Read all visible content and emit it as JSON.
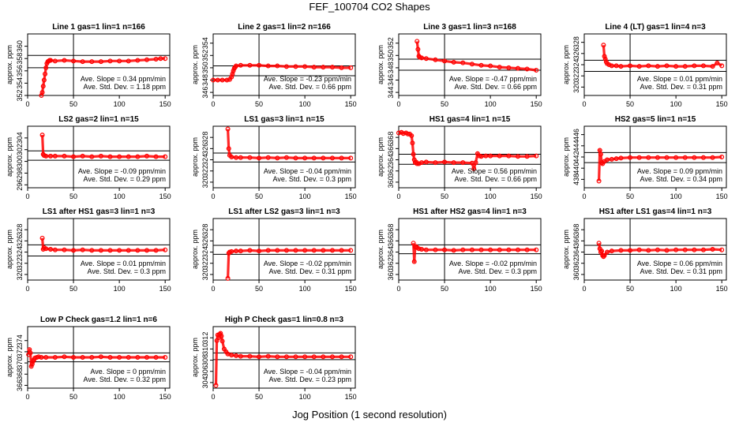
{
  "title": "FEF_100704  CO2 Shapes",
  "xlabel": "Jog Position (1 second resolution)",
  "colors": {
    "points": "#ff0000",
    "axes": "#000000"
  },
  "chart_data": [
    {
      "type": "scatter",
      "title": "Line 1 gas=1 lin=1 n=166",
      "ylabel": "approx. ppm",
      "xlim": [
        0,
        155
      ],
      "ylim": [
        352,
        362
      ],
      "xticks": [
        0,
        50,
        100,
        150
      ],
      "yticks": [
        352,
        354,
        356,
        358,
        360
      ],
      "hlines": [
        358.5,
        356.5
      ],
      "annotations": [
        "Ave. Slope = 0.34 ppm/min",
        "Ave. Std. Dev. = 1.18 ppm"
      ],
      "series": [
        {
          "x": [
            15,
            16,
            17,
            18,
            19,
            20,
            21,
            22,
            23,
            24,
            25,
            30,
            40,
            50,
            60,
            70,
            80,
            90,
            100,
            110,
            120,
            130,
            140,
            145,
            150
          ],
          "y": [
            352,
            352.5,
            353.5,
            354.5,
            355.5,
            356.5,
            357.2,
            357.5,
            357.6,
            357.7,
            357.7,
            357.6,
            357.7,
            357.6,
            357.5,
            357.5,
            357.5,
            357.6,
            357.6,
            357.6,
            357.7,
            357.8,
            357.9,
            358,
            358
          ]
        }
      ]
    },
    {
      "type": "scatter",
      "title": "Line 2 gas=1 lin=2 n=166",
      "ylabel": "approx. ppm",
      "xlim": [
        0,
        155
      ],
      "ylim": [
        345.5,
        355.5
      ],
      "xticks": [
        0,
        50,
        100,
        150
      ],
      "yticks": [
        346,
        348,
        350,
        352,
        354
      ],
      "hlines": [
        350.3,
        348.7
      ],
      "annotations": [
        "Ave. Slope = -0.23 ppm/min",
        "Ave. Std. Dev. = 0.66 ppm"
      ],
      "series": [
        {
          "x": [
            0,
            5,
            10,
            15,
            18,
            20,
            21,
            22,
            23,
            24,
            25,
            30,
            40,
            50,
            60,
            70,
            80,
            90,
            100,
            110,
            120,
            130,
            140,
            150
          ],
          "y": [
            348,
            348,
            348,
            348,
            348.1,
            348.5,
            349,
            349.5,
            349.9,
            350.1,
            350.3,
            350.4,
            350.4,
            350.4,
            350.3,
            350.3,
            350.2,
            350.2,
            350.2,
            350.1,
            350.1,
            350.1,
            350,
            350
          ]
        }
      ]
    },
    {
      "type": "scatter",
      "title": "Line 3 gas=1 lin=3 n=168",
      "ylabel": "approx. ppm",
      "xlim": [
        0,
        155
      ],
      "ylim": [
        343.5,
        353.5
      ],
      "xticks": [
        0,
        50,
        100,
        150
      ],
      "yticks": [
        344,
        346,
        348,
        350,
        352
      ],
      "hlines": [
        349.4,
        347.6
      ],
      "annotations": [
        "Ave. Slope = -0.47 ppm/min",
        "Ave. Std. Dev. = 0.66 ppm"
      ],
      "series": [
        {
          "x": [
            20,
            21,
            22,
            23,
            25,
            30,
            40,
            50,
            60,
            70,
            80,
            90,
            100,
            110,
            120,
            130,
            140,
            150
          ],
          "y": [
            352.3,
            351,
            349.9,
            349.7,
            349.6,
            349.5,
            349.3,
            349.1,
            348.9,
            348.8,
            348.6,
            348.4,
            348.3,
            348.1,
            348,
            347.9,
            347.8,
            347.6
          ]
        }
      ]
    },
    {
      "type": "scatter",
      "title": "Line 4 (LT) gas=1 lin=4 n=3",
      "ylabel": "approx. ppm",
      "xlim": [
        0,
        155
      ],
      "ylim": [
        318.5,
        329.5
      ],
      "xticks": [
        0,
        50,
        100,
        150
      ],
      "yticks": [
        320,
        322,
        324,
        326,
        328
      ],
      "hlines": [
        324.8,
        322.8
      ],
      "annotations": [
        "Ave. Slope = 0.01 ppm/min",
        "Ave. Std. Dev. = 0.31 ppm"
      ],
      "series": [
        {
          "x": [
            21,
            22,
            23,
            24,
            25,
            27,
            30,
            35,
            40,
            50,
            60,
            70,
            80,
            90,
            100,
            110,
            120,
            130,
            140,
            145,
            150
          ],
          "y": [
            327.5,
            325.5,
            325,
            324.5,
            324.2,
            324,
            323.8,
            323.8,
            323.7,
            323.8,
            323.7,
            323.8,
            323.7,
            323.8,
            323.7,
            323.7,
            323.8,
            323.8,
            323.7,
            324.3,
            323.8
          ]
        }
      ]
    },
    {
      "type": "scatter",
      "title": "LS2 gas=2 lin=1 n=15",
      "ylabel": "approx. ppm",
      "xlim": [
        0,
        155
      ],
      "ylim": [
        295.5,
        306
      ],
      "xticks": [
        0,
        50,
        100,
        150
      ],
      "yticks": [
        296,
        298,
        300,
        302,
        304
      ],
      "hlines": [
        301.8,
        300.2
      ],
      "annotations": [
        "Ave. Slope = -0.09 ppm/min",
        "Ave. Std. Dev. = 0.29 ppm"
      ],
      "series": [
        {
          "x": [
            16,
            17,
            18,
            20,
            25,
            30,
            40,
            50,
            60,
            70,
            80,
            90,
            100,
            110,
            120,
            130,
            140,
            150
          ],
          "y": [
            304.5,
            301.2,
            301,
            300.9,
            300.9,
            300.9,
            300.9,
            300.8,
            300.9,
            300.8,
            300.9,
            300.8,
            300.8,
            300.8,
            300.8,
            300.9,
            300.8,
            300.8
          ]
        }
      ]
    },
    {
      "type": "scatter",
      "title": "LS1 gas=3 lin=1 n=15",
      "ylabel": "approx. ppm",
      "xlim": [
        0,
        155
      ],
      "ylim": [
        319,
        330
      ],
      "xticks": [
        0,
        50,
        100,
        150
      ],
      "yticks": [
        320,
        322,
        324,
        326,
        328
      ],
      "hlines": [
        325.2,
        323.6
      ],
      "annotations": [
        "Ave. Slope = -0.04 ppm/min",
        "Ave. Std. Dev. = 0.3 ppm"
      ],
      "series": [
        {
          "x": [
            16,
            17,
            18,
            20,
            25,
            30,
            40,
            50,
            60,
            70,
            80,
            90,
            100,
            110,
            120,
            130,
            140,
            150
          ],
          "y": [
            329.5,
            326,
            324.8,
            324.5,
            324.4,
            324.4,
            324.4,
            324.3,
            324.4,
            324.3,
            324.4,
            324.3,
            324.3,
            324.3,
            324.3,
            324.3,
            324.3,
            324.3
          ]
        }
      ]
    },
    {
      "type": "scatter",
      "title": "HS1 gas=4 lin=1 n=15",
      "ylabel": "approx. ppm",
      "xlim": [
        0,
        155
      ],
      "ylim": [
        359,
        370
      ],
      "xticks": [
        0,
        50,
        100,
        150
      ],
      "yticks": [
        360,
        362,
        364,
        366,
        368
      ],
      "hlines": [
        365,
        363.2
      ],
      "annotations": [
        "Ave. Slope = 0.56 ppm/min",
        "Ave. Std. Dev. = 0.66 ppm"
      ],
      "series": [
        {
          "x": [
            0,
            3,
            5,
            8,
            10,
            12,
            14,
            15,
            16,
            17,
            18,
            19,
            20,
            22,
            25,
            30,
            40,
            50,
            60,
            70,
            80,
            82,
            84,
            86,
            88,
            90,
            95,
            100,
            110,
            120,
            130,
            140,
            150
          ],
          "y": [
            368.8,
            368.9,
            368.7,
            368.8,
            368.6,
            368.6,
            368.3,
            367,
            365,
            364,
            363.5,
            363.6,
            363.3,
            363.3,
            363.5,
            363.6,
            363.5,
            363.6,
            363.5,
            363.5,
            363.4,
            362.4,
            363.5,
            365.1,
            364.7,
            364.6,
            364.7,
            364.7,
            364.7,
            364.7,
            364.6,
            364.6,
            364.7
          ]
        }
      ]
    },
    {
      "type": "scatter",
      "title": "HS2 gas=5 lin=1 n=15",
      "ylabel": "approx. ppm",
      "xlim": [
        0,
        155
      ],
      "ylim": [
        436.5,
        447.5
      ],
      "xticks": [
        0,
        50,
        100,
        150
      ],
      "yticks": [
        438,
        440,
        442,
        444,
        446
      ],
      "hlines": [
        442.8,
        441
      ],
      "annotations": [
        "Ave. Slope = 0.09 ppm/min",
        "Ave. Std. Dev. = 0.34 ppm"
      ],
      "series": [
        {
          "x": [
            16,
            17,
            18,
            19,
            20,
            22,
            25,
            30,
            35,
            40,
            50,
            60,
            70,
            80,
            90,
            100,
            110,
            120,
            130,
            140,
            150
          ],
          "y": [
            437.7,
            443.2,
            442.5,
            441,
            440.8,
            441.2,
            441.5,
            441.6,
            441.7,
            441.8,
            441.9,
            441.9,
            441.9,
            441.9,
            441.9,
            441.9,
            441.9,
            441.9,
            441.9,
            441.9,
            442
          ]
        }
      ]
    },
    {
      "type": "scatter",
      "title": "LS1 after HS1 gas=3 lin=1 n=3",
      "ylabel": "approx. ppm",
      "xlim": [
        0,
        155
      ],
      "ylim": [
        319,
        330
      ],
      "xticks": [
        0,
        50,
        100,
        150
      ],
      "yticks": [
        320,
        322,
        324,
        326,
        328
      ],
      "hlines": [
        325.3,
        323.3
      ],
      "annotations": [
        "Ave. Slope = 0.01 ppm/min",
        "Ave. Std. Dev. = 0.3 ppm"
      ],
      "series": [
        {
          "x": [
            16,
            17,
            18,
            20,
            25,
            30,
            40,
            50,
            60,
            70,
            80,
            90,
            100,
            110,
            120,
            130,
            140,
            150
          ],
          "y": [
            326.5,
            324.5,
            324.8,
            324.6,
            324.5,
            324.4,
            324.4,
            324.3,
            324.4,
            324.3,
            324.3,
            324.3,
            324.3,
            324.3,
            324.3,
            324.3,
            324.3,
            324.4
          ]
        }
      ]
    },
    {
      "type": "scatter",
      "title": "LS1 after LS2 gas=3 lin=1 n=3",
      "ylabel": "approx. ppm",
      "xlim": [
        0,
        155
      ],
      "ylim": [
        319,
        330
      ],
      "xticks": [
        0,
        50,
        100,
        150
      ],
      "yticks": [
        320,
        322,
        324,
        326,
        328
      ],
      "hlines": [
        325.2,
        323.6
      ],
      "annotations": [
        "Ave. Slope = -0.02 ppm/min",
        "Ave. Std. Dev. = 0.31 ppm"
      ],
      "series": [
        {
          "x": [
            16,
            17,
            18,
            20,
            25,
            30,
            40,
            50,
            60,
            70,
            80,
            90,
            100,
            110,
            120,
            130,
            140,
            150
          ],
          "y": [
            319.3,
            323.8,
            324,
            324.1,
            324.2,
            324.2,
            324.3,
            324.2,
            324.3,
            324.3,
            324.3,
            324.3,
            324.3,
            324.3,
            324.3,
            324.3,
            324.3,
            324.3
          ]
        }
      ]
    },
    {
      "type": "scatter",
      "title": "HS1 after HS2 gas=4 lin=1 n=3",
      "ylabel": "approx. ppm",
      "xlim": [
        0,
        155
      ],
      "ylim": [
        359,
        370
      ],
      "xticks": [
        0,
        50,
        100,
        150
      ],
      "yticks": [
        360,
        362,
        364,
        366,
        368
      ],
      "hlines": [
        365.3,
        363.7
      ],
      "annotations": [
        "Ave. Slope = -0.02 ppm/min",
        "Ave. Std. Dev. = 0.3 ppm"
      ],
      "series": [
        {
          "x": [
            16,
            17,
            18,
            19,
            20,
            22,
            25,
            30,
            40,
            50,
            60,
            70,
            80,
            90,
            100,
            110,
            120,
            130,
            140,
            150
          ],
          "y": [
            365.6,
            362.3,
            364.9,
            365,
            364.8,
            364.6,
            364.5,
            364.4,
            364.4,
            364.4,
            364.3,
            364.4,
            364.4,
            364.4,
            364.4,
            364.4,
            364.4,
            364.4,
            364.4,
            364.4
          ]
        }
      ]
    },
    {
      "type": "scatter",
      "title": "HS1 after LS1 gas=4 lin=1 n=3",
      "ylabel": "approx. ppm",
      "xlim": [
        0,
        155
      ],
      "ylim": [
        359,
        370
      ],
      "xticks": [
        0,
        50,
        100,
        150
      ],
      "yticks": [
        360,
        362,
        364,
        366,
        368
      ],
      "hlines": [
        365.2,
        363.6
      ],
      "annotations": [
        "Ave. Slope = 0.06 ppm/min",
        "Ave. Std. Dev. = 0.31 ppm"
      ],
      "series": [
        {
          "x": [
            16,
            17,
            18,
            19,
            20,
            21,
            22,
            25,
            30,
            40,
            50,
            60,
            70,
            80,
            90,
            100,
            110,
            120,
            130,
            140,
            150
          ],
          "y": [
            365.6,
            364.6,
            364,
            364.2,
            363.4,
            363.2,
            363.4,
            364,
            364.2,
            364.3,
            364.3,
            364.4,
            364.3,
            364.4,
            364.3,
            364.4,
            364.4,
            364.4,
            364.4,
            364.5,
            364.4
          ]
        }
      ]
    },
    {
      "type": "scatter",
      "title": "Low P Check gas=1.2 lin=1 n=6",
      "ylabel": "approx. ppm",
      "xlim": [
        0,
        155
      ],
      "ylim": [
        365.5,
        376.5
      ],
      "xticks": [
        0,
        50,
        100,
        150
      ],
      "yticks": [
        366,
        368,
        370,
        372,
        374
      ],
      "hlines": [
        371.8,
        370.2
      ],
      "annotations": [
        "Ave. Slope = 0 ppm/min",
        "Ave. Std. Dev. = 0.32 ppm"
      ],
      "series": [
        {
          "x": [
            1,
            2,
            3,
            4,
            5,
            6,
            7,
            8,
            10,
            12,
            15,
            20,
            30,
            40,
            50,
            60,
            70,
            80,
            90,
            100,
            110,
            120,
            130,
            140,
            150
          ],
          "y": [
            371.5,
            372.4,
            371.8,
            369.4,
            369.8,
            370.3,
            370.6,
            370.9,
            371,
            371.1,
            371,
            371,
            371,
            371.1,
            371,
            371,
            371,
            371.1,
            371,
            371,
            371,
            371,
            371,
            371,
            371
          ]
        }
      ]
    },
    {
      "type": "scatter",
      "title": "High P Check gas=1 lin=0.8 n=3",
      "ylabel": "approx. ppm",
      "xlim": [
        0,
        155
      ],
      "ylim": [
        303,
        314
      ],
      "xticks": [
        0,
        50,
        100,
        150
      ],
      "yticks": [
        304,
        306,
        308,
        310,
        312
      ],
      "hlines": [
        309.3,
        308.1
      ],
      "annotations": [
        "Ave. Slope = -0.04 ppm/min",
        "Ave. Std. Dev. = 0.23 ppm"
      ],
      "series": [
        {
          "x": [
            3,
            4,
            5,
            6,
            7,
            8,
            9,
            10,
            12,
            14,
            16,
            20,
            25,
            30,
            40,
            50,
            60,
            70,
            80,
            90,
            100,
            110,
            120,
            130,
            140,
            150
          ],
          "y": [
            303.5,
            311.5,
            312.5,
            312,
            312.6,
            312.8,
            312.3,
            311.4,
            310,
            309.5,
            309.1,
            308.9,
            308.8,
            308.7,
            308.7,
            308.6,
            308.7,
            308.6,
            308.6,
            308.6,
            308.6,
            308.6,
            308.6,
            308.6,
            308.6,
            308.6
          ]
        }
      ]
    }
  ]
}
